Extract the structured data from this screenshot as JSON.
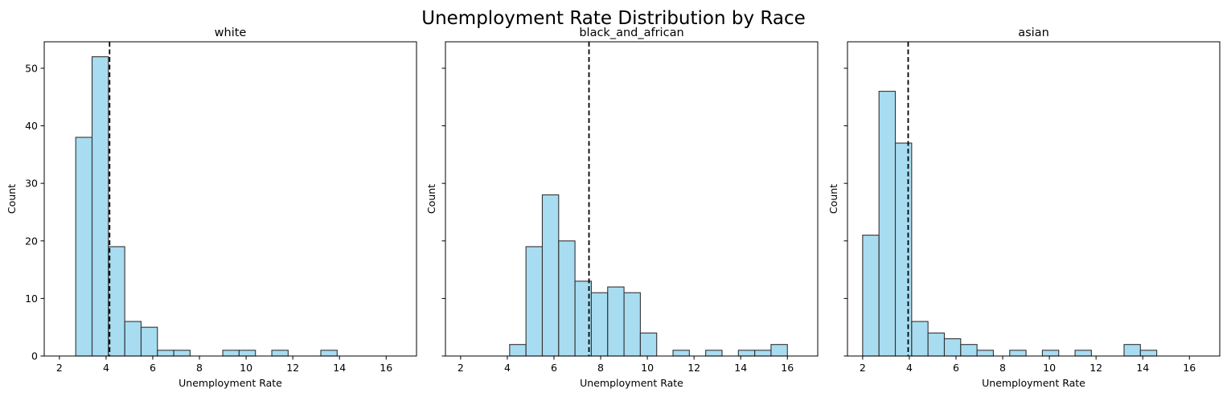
{
  "figure": {
    "title": "Unemployment Rate Distribution by Race"
  },
  "chart_data": [
    {
      "type": "bar",
      "title": "white",
      "xlabel": "Unemployment Rate",
      "ylabel": "Count",
      "xlim": [
        1.35,
        17.3
      ],
      "ylim": [
        0,
        54.6
      ],
      "xticks": [
        2,
        4,
        6,
        8,
        10,
        12,
        14,
        16
      ],
      "yticks": [
        0,
        10,
        20,
        30,
        40,
        50
      ],
      "show_y_tick_labels": true,
      "bin_edges": [
        2.0,
        2.7,
        3.4,
        4.1,
        4.8,
        5.5,
        6.2,
        6.9,
        7.6,
        8.3,
        9.0,
        9.7,
        10.4,
        11.1,
        11.8,
        12.5,
        13.2,
        13.9,
        14.6,
        15.3,
        16.0,
        16.7
      ],
      "counts": [
        0,
        38,
        52,
        19,
        6,
        5,
        1,
        1,
        0,
        0,
        1,
        1,
        0,
        1,
        0,
        0,
        1,
        0,
        0,
        0,
        0
      ],
      "mean_line": 4.15,
      "bar_color": "#87ceeb",
      "edge_color": "#333333",
      "mean_line_color": "#000000"
    },
    {
      "type": "bar",
      "title": "black_and_african",
      "xlabel": "Unemployment Rate",
      "ylabel": "Count",
      "xlim": [
        1.35,
        17.3
      ],
      "ylim": [
        0,
        54.6
      ],
      "xticks": [
        2,
        4,
        6,
        8,
        10,
        12,
        14,
        16
      ],
      "yticks": [
        0,
        10,
        20,
        30,
        40,
        50
      ],
      "show_y_tick_labels": false,
      "bin_edges": [
        2.0,
        2.7,
        3.4,
        4.1,
        4.8,
        5.5,
        6.2,
        6.9,
        7.6,
        8.3,
        9.0,
        9.7,
        10.4,
        11.1,
        11.8,
        12.5,
        13.2,
        13.9,
        14.6,
        15.3,
        16.0,
        16.7
      ],
      "counts": [
        0,
        0,
        0,
        2,
        19,
        28,
        20,
        13,
        11,
        12,
        11,
        4,
        0,
        1,
        0,
        1,
        0,
        1,
        1,
        2,
        0
      ],
      "mean_line": 7.5,
      "bar_color": "#87ceeb",
      "edge_color": "#333333",
      "mean_line_color": "#000000"
    },
    {
      "type": "bar",
      "title": "asian",
      "xlabel": "Unemployment Rate",
      "ylabel": "Count",
      "xlim": [
        1.35,
        17.3
      ],
      "ylim": [
        0,
        54.6
      ],
      "xticks": [
        2,
        4,
        6,
        8,
        10,
        12,
        14,
        16
      ],
      "yticks": [
        0,
        10,
        20,
        30,
        40,
        50
      ],
      "show_y_tick_labels": false,
      "bin_edges": [
        2.0,
        2.7,
        3.4,
        4.1,
        4.8,
        5.5,
        6.2,
        6.9,
        7.6,
        8.3,
        9.0,
        9.7,
        10.4,
        11.1,
        11.8,
        12.5,
        13.2,
        13.9,
        14.6,
        15.3,
        16.0,
        16.7
      ],
      "counts": [
        21,
        46,
        37,
        6,
        4,
        3,
        2,
        1,
        0,
        1,
        0,
        1,
        0,
        1,
        0,
        0,
        2,
        1,
        0,
        0,
        0
      ],
      "mean_line": 3.95,
      "bar_color": "#87ceeb",
      "edge_color": "#333333",
      "mean_line_color": "#000000"
    }
  ]
}
